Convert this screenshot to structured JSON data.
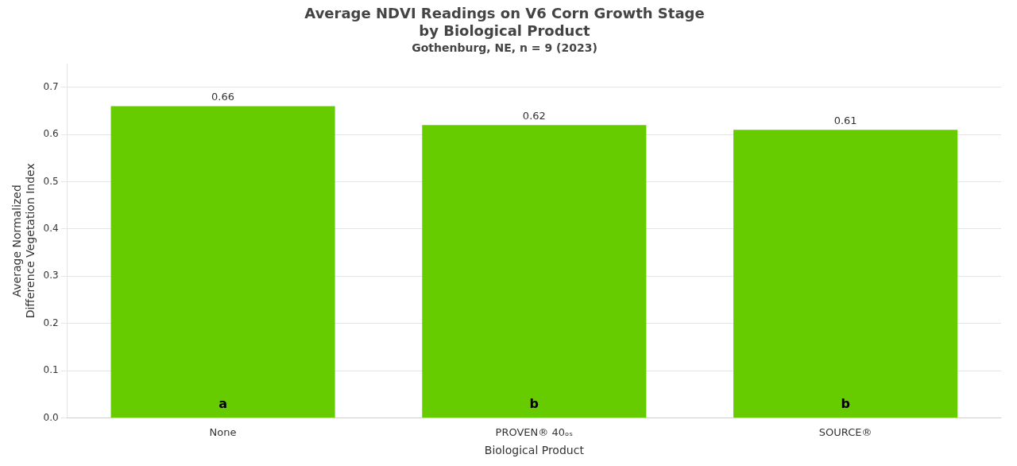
{
  "chart_data": {
    "type": "bar",
    "title": "Average NDVI Readings on V6 Corn Growth Stage\nby Biological Product",
    "subtitle": "Gothenburg, NE, n = 9 (2023)",
    "xlabel": "Biological Product",
    "ylabel": "Average Normalized\nDifference Vegetation Index",
    "categories": [
      "None",
      "PROVEN® 40ₒₛ",
      "SOURCE®"
    ],
    "values": [
      0.66,
      0.62,
      0.61
    ],
    "color": "#66cc00",
    "data_labels": true,
    "annotations": [
      {
        "category": "None",
        "text": "a"
      },
      {
        "category": "PROVEN® 40ₒₛ",
        "text": "b"
      },
      {
        "category": "SOURCE®",
        "text": "b"
      }
    ],
    "ylim": [
      0.0,
      0.75
    ],
    "yticks": [
      {
        "value": 0,
        "label": "0.0"
      },
      {
        "value": 0.1,
        "label": "0.1"
      },
      {
        "value": 0.2,
        "label": "0.2"
      },
      {
        "value": 0.3,
        "label": "0.3"
      },
      {
        "value": 0.4,
        "label": "0.4"
      },
      {
        "value": 0.5,
        "label": "0.5"
      },
      {
        "value": 0.6,
        "label": "0.6"
      },
      {
        "value": 0.7,
        "label": "0.7"
      }
    ],
    "grid": true
  }
}
